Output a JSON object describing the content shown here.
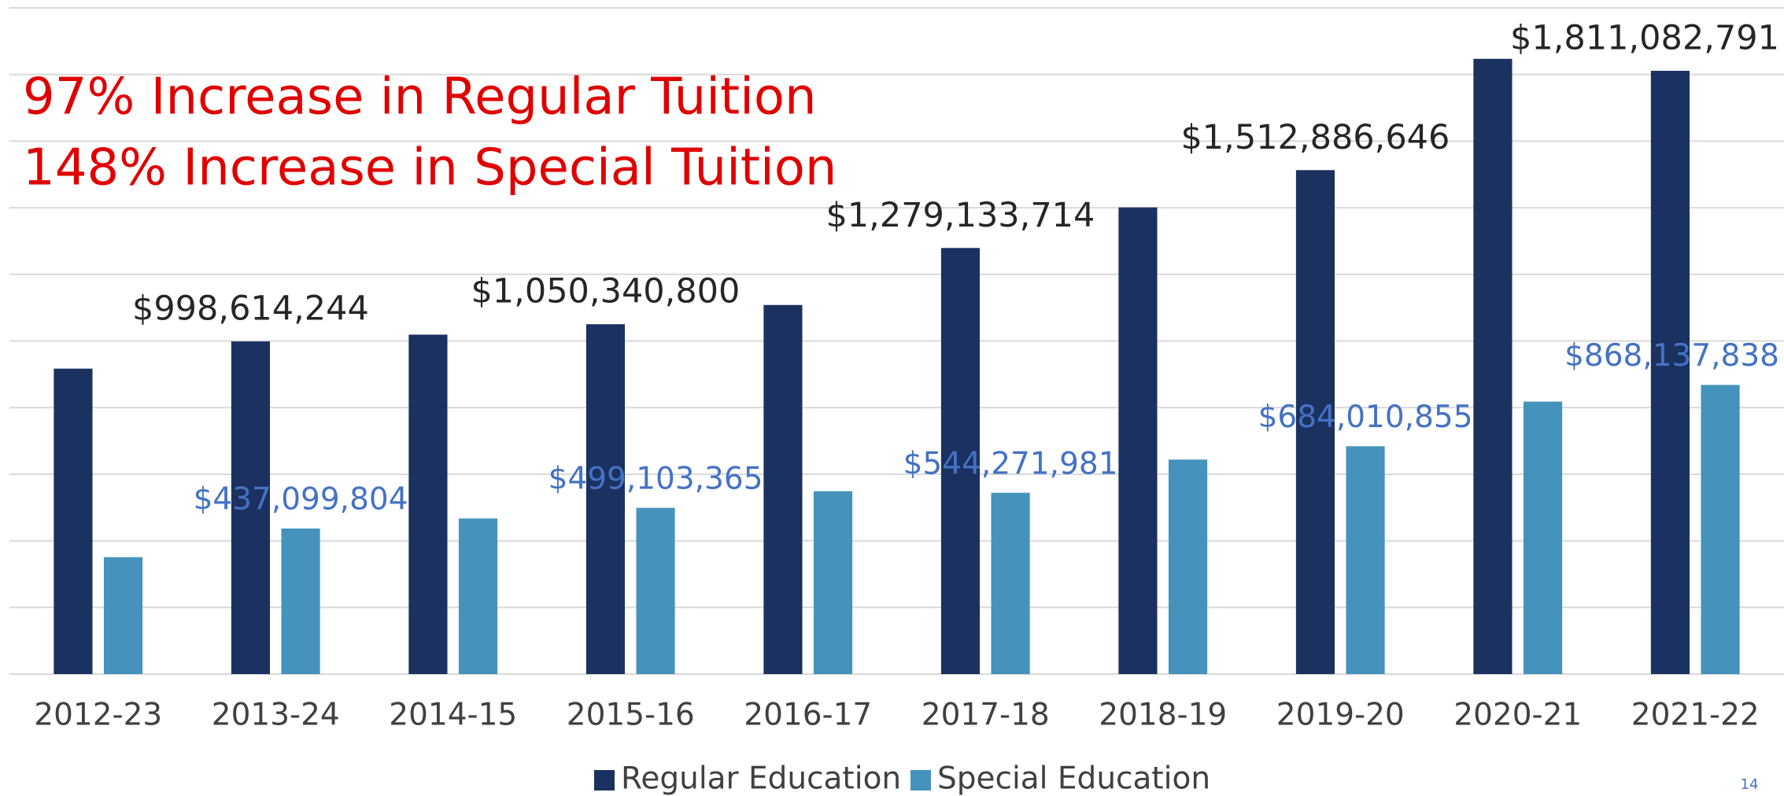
{
  "chart_data": {
    "type": "bar",
    "annotations": [
      "97% Increase in Regular Tuition",
      "148% Increase in Special Tuition"
    ],
    "page_number": "14",
    "categories": [
      "2012-23",
      "2013-24",
      "2014-15",
      "2015-16",
      "2016-17",
      "2017-18",
      "2018-19",
      "2019-20",
      "2020-21",
      "2021-22"
    ],
    "series": [
      {
        "name": "Regular Education",
        "color": "#1b3160",
        "values": [
          917000000,
          998614244,
          1019000000,
          1050340800,
          1108000000,
          1279133714,
          1401000000,
          1512886646,
          1847000000,
          1811082791
        ],
        "value_labels": [
          null,
          "$998,614,244",
          null,
          "$1,050,340,800",
          null,
          "$1,279,133,714",
          null,
          "$1,512,886,646",
          null,
          "$1,811,082,791"
        ]
      },
      {
        "name": "Special Education",
        "color": "#4593bc",
        "values": [
          351000000,
          437099804,
          467000000,
          499103365,
          549000000,
          544271981,
          644000000,
          684010855,
          818000000,
          868137838
        ],
        "value_labels": [
          null,
          "$437,099,804",
          null,
          "$499,103,365",
          null,
          "$544,271,981",
          null,
          "$684,010,855",
          null,
          "$868,137,838"
        ]
      }
    ],
    "ylim": [
      0,
      2000000000
    ],
    "yticks": [
      0,
      200000000,
      400000000,
      600000000,
      800000000,
      1000000000,
      1200000000,
      1400000000,
      1600000000,
      1800000000,
      2000000000
    ],
    "grid": true,
    "legend": "bottom"
  }
}
